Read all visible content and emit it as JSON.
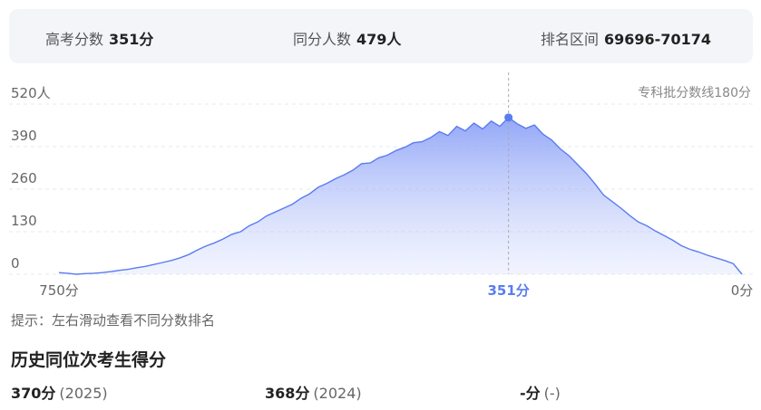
{
  "summary": [
    {
      "label": "高考分数",
      "value": "351分"
    },
    {
      "label": "同分人数",
      "value": "479人"
    },
    {
      "label": "排名区间",
      "value": "69696-70174"
    }
  ],
  "chart_data": {
    "type": "area",
    "color": "#5b7cf0",
    "annotation": "专科批分数线180分",
    "ylim": [
      0,
      520
    ],
    "yticks": [
      0,
      130,
      260,
      390,
      {
        "value": 520,
        "label": "520人"
      }
    ],
    "grid": true,
    "categories": [
      "750分",
      null,
      null,
      null,
      null,
      null,
      null,
      null,
      null,
      null,
      null,
      null,
      null,
      null,
      null,
      null,
      null,
      null,
      null,
      null,
      null,
      null,
      null,
      null,
      null,
      null,
      null,
      null,
      null,
      null,
      null,
      null,
      null,
      null,
      null,
      null,
      null,
      null,
      null,
      null,
      null,
      null,
      null,
      null,
      null,
      null,
      null,
      null,
      null,
      null,
      null,
      null,
      "351分",
      null,
      null,
      null,
      null,
      null,
      null,
      null,
      null,
      null,
      null,
      null,
      null,
      null,
      null,
      null,
      null,
      null,
      null,
      null,
      null,
      null,
      null,
      null,
      null,
      null,
      null,
      "0分"
    ],
    "values": [
      5,
      3,
      0,
      2,
      3,
      5,
      8,
      12,
      15,
      20,
      24,
      30,
      36,
      42,
      50,
      60,
      74,
      86,
      96,
      108,
      122,
      130,
      148,
      160,
      178,
      190,
      202,
      214,
      232,
      246,
      266,
      278,
      292,
      304,
      318,
      338,
      340,
      356,
      364,
      378,
      388,
      402,
      405,
      418,
      436,
      424,
      452,
      438,
      462,
      444,
      468,
      452,
      479,
      460,
      446,
      456,
      428,
      410,
      383,
      362,
      335,
      308,
      276,
      242,
      222,
      202,
      180,
      160,
      148,
      132,
      118,
      104,
      87,
      76,
      68,
      58,
      50,
      42,
      32,
      0
    ]
  },
  "hint": "提示：左右滑动查看不同分数排名",
  "history": {
    "title": "历史同位次考生得分",
    "items": [
      {
        "score": "370分",
        "year": "(2025)"
      },
      {
        "score": "368分",
        "year": "(2024)"
      },
      {
        "score": "-分",
        "year": "(-)"
      }
    ]
  }
}
